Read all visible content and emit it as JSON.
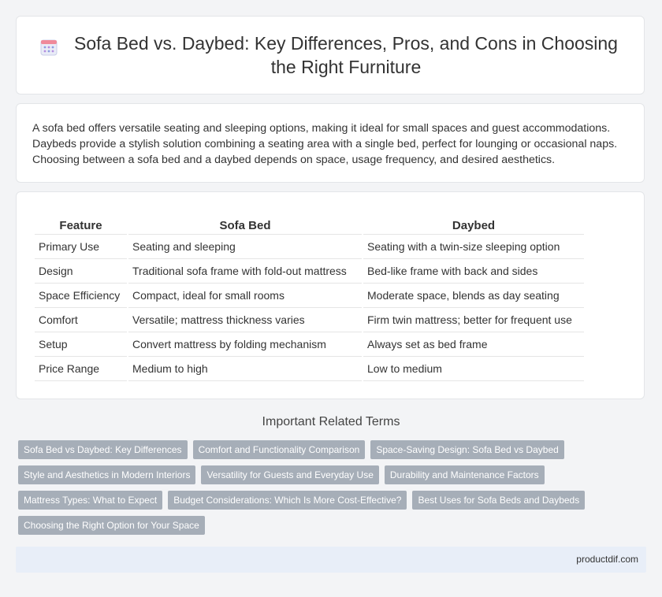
{
  "header": {
    "icon": "calendar-icon",
    "title": "Sofa Bed vs. Daybed: Key Differences, Pros, and Cons in Choosing the Right Furniture"
  },
  "intro": {
    "text": "A sofa bed offers versatile seating and sleeping options, making it ideal for small spaces and guest accommodations. Daybeds provide a stylish solution combining a seating area with a single bed, perfect for lounging or occasional naps. Choosing between a sofa bed and a daybed depends on space, usage frequency, and desired aesthetics."
  },
  "table": {
    "headers": [
      "Feature",
      "Sofa Bed",
      "Daybed"
    ],
    "rows": [
      [
        "Primary Use",
        "Seating and sleeping",
        "Seating with a twin-size sleeping option"
      ],
      [
        "Design",
        "Traditional sofa frame with fold-out mattress",
        "Bed-like frame with back and sides"
      ],
      [
        "Space Efficiency",
        "Compact, ideal for small rooms",
        "Moderate space, blends as day seating"
      ],
      [
        "Comfort",
        "Versatile; mattress thickness varies",
        "Firm twin mattress; better for frequent use"
      ],
      [
        "Setup",
        "Convert mattress by folding mechanism",
        "Always set as bed frame"
      ],
      [
        "Price Range",
        "Medium to high",
        "Low to medium"
      ]
    ]
  },
  "related": {
    "title": "Important Related Terms",
    "tag_rows": [
      [
        "Sofa Bed vs Daybed: Key Differences",
        "Comfort and Functionality Comparison",
        "Space-Saving Design: Sofa Bed vs Daybed"
      ],
      [
        "Style and Aesthetics in Modern Interiors",
        "Versatility for Guests and Everyday Use",
        "Durability and Maintenance Factors"
      ],
      [
        "Mattress Types: What to Expect",
        "Budget Considerations: Which Is More Cost-Effective?",
        "Best Uses for Sofa Beds and Daybeds"
      ],
      [
        "Choosing the Right Option for Your Space"
      ]
    ]
  },
  "footer": {
    "site": "productdif.com"
  },
  "colors": {
    "page_background": "#f3f4f6",
    "card_background": "#ffffff",
    "tag_background": "#a6aeb8",
    "footer_background": "#e8eef8"
  }
}
